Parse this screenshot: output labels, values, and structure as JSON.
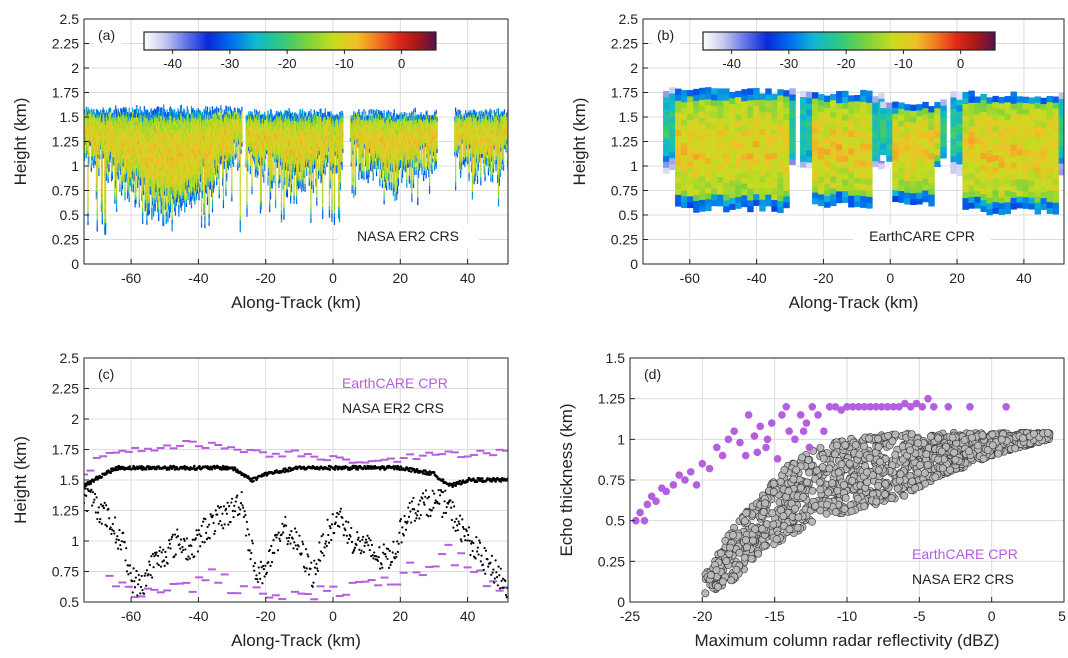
{
  "chart_data": [
    {
      "type": "heatmap",
      "panel_label": "(a)",
      "xlabel": "Along-Track (km)",
      "ylabel": "Height (km)",
      "xlim": [
        -74,
        52
      ],
      "ylim": [
        0,
        2.5
      ],
      "xticks": [
        -60,
        -40,
        -20,
        0,
        20,
        40
      ],
      "yticks": [
        0,
        0.25,
        0.5,
        0.75,
        1,
        1.25,
        1.5,
        1.75,
        2,
        2.25,
        2.5
      ],
      "grid": true,
      "annotation": "NASA ER2 CRS",
      "colorbar": {
        "ticks": [
          -40,
          -30,
          -20,
          -10,
          0
        ],
        "range": [
          -45,
          6
        ],
        "placement": "top-inside"
      },
      "cloud_segments": [
        {
          "x_start": -74,
          "x_end": -27,
          "top_km": 1.55,
          "base_km": 0.3
        },
        {
          "x_start": -26,
          "x_end": 3,
          "top_km": 1.52,
          "base_km": 0.38
        },
        {
          "x_start": 5,
          "x_end": 31,
          "top_km": 1.52,
          "base_km": 0.6
        },
        {
          "x_start": 36,
          "x_end": 52,
          "top_km": 1.52,
          "base_km": 0.58
        }
      ]
    },
    {
      "type": "heatmap",
      "panel_label": "(b)",
      "xlabel": "Along-Track (km)",
      "ylabel": "Height (km)",
      "xlim": [
        -74,
        52
      ],
      "ylim": [
        0,
        2.5
      ],
      "xticks": [
        -60,
        -40,
        -20,
        0,
        20,
        40
      ],
      "yticks": [
        0,
        0.25,
        0.5,
        0.75,
        1,
        1.25,
        1.5,
        1.75,
        2,
        2.25,
        2.5
      ],
      "grid": true,
      "annotation": "EarthCARE CPR",
      "colorbar": {
        "ticks": [
          -40,
          -30,
          -20,
          -10,
          0
        ],
        "range": [
          -45,
          6
        ],
        "placement": "top-inside"
      },
      "cloud_segments": [
        {
          "x_start": -68,
          "x_end": -29,
          "top_km": 1.75,
          "base_km": 0.52
        },
        {
          "x_start": -27,
          "x_end": -3,
          "top_km": 1.72,
          "base_km": 0.55
        },
        {
          "x_start": -3,
          "x_end": 16,
          "top_km": 1.62,
          "base_km": 0.58
        },
        {
          "x_start": 18,
          "x_end": 52,
          "top_km": 1.7,
          "base_km": 0.5
        }
      ]
    },
    {
      "type": "scatter",
      "panel_label": "(c)",
      "xlabel": "Along-Track (km)",
      "ylabel": "Height (km)",
      "xlim": [
        -74,
        52
      ],
      "ylim": [
        0.5,
        2.5
      ],
      "xticks": [
        -60,
        -40,
        -20,
        0,
        20,
        40
      ],
      "yticks": [
        0.5,
        0.75,
        1,
        1.25,
        1.5,
        1.75,
        2,
        2.25,
        2.5
      ],
      "grid": true,
      "legend": "top-right",
      "series": [
        {
          "name": "EarthCARE CPR",
          "color": "#b45ee0",
          "marker": "dash",
          "top_profile": [
            [
              -74,
              1.55
            ],
            [
              -68,
              1.72
            ],
            [
              -60,
              1.75
            ],
            [
              -50,
              1.78
            ],
            [
              -40,
              1.8
            ],
            [
              -30,
              1.76
            ],
            [
              -20,
              1.72
            ],
            [
              -10,
              1.72
            ],
            [
              0,
              1.68
            ],
            [
              10,
              1.66
            ],
            [
              20,
              1.68
            ],
            [
              30,
              1.7
            ],
            [
              40,
              1.72
            ],
            [
              52,
              1.74
            ]
          ],
          "base_profile": [
            [
              -68,
              0.8
            ],
            [
              -62,
              0.58
            ],
            [
              -55,
              0.62
            ],
            [
              -45,
              0.6
            ],
            [
              -35,
              0.7
            ],
            [
              -25,
              0.54
            ],
            [
              -15,
              0.55
            ],
            [
              -5,
              0.56
            ],
            [
              5,
              0.62
            ],
            [
              15,
              0.7
            ],
            [
              25,
              0.75
            ],
            [
              35,
              0.9
            ],
            [
              45,
              0.72
            ],
            [
              52,
              0.52
            ]
          ]
        },
        {
          "name": "NASA ER2 CRS",
          "color": "#000000",
          "marker": "dot",
          "top_profile": [
            [
              -74,
              1.45
            ],
            [
              -68,
              1.55
            ],
            [
              -64,
              1.6
            ],
            [
              -50,
              1.6
            ],
            [
              -40,
              1.6
            ],
            [
              -30,
              1.6
            ],
            [
              -27,
              1.55
            ],
            [
              -24,
              1.5
            ],
            [
              -20,
              1.55
            ],
            [
              -10,
              1.6
            ],
            [
              0,
              1.6
            ],
            [
              10,
              1.6
            ],
            [
              20,
              1.6
            ],
            [
              30,
              1.55
            ],
            [
              35,
              1.45
            ],
            [
              40,
              1.5
            ],
            [
              52,
              1.5
            ]
          ],
          "base_profile": [
            [
              -72,
              1.35
            ],
            [
              -66,
              1.15
            ],
            [
              -62,
              0.95
            ],
            [
              -60,
              0.7
            ],
            [
              -57,
              0.62
            ],
            [
              -54,
              0.8
            ],
            [
              -50,
              0.9
            ],
            [
              -46,
              1.0
            ],
            [
              -42,
              0.92
            ],
            [
              -38,
              1.1
            ],
            [
              -34,
              1.18
            ],
            [
              -30,
              1.25
            ],
            [
              -27,
              1.35
            ],
            [
              -25,
              1.0
            ],
            [
              -22,
              0.7
            ],
            [
              -18,
              0.9
            ],
            [
              -14,
              1.1
            ],
            [
              -10,
              0.95
            ],
            [
              -6,
              0.72
            ],
            [
              -2,
              1.05
            ],
            [
              2,
              1.2
            ],
            [
              6,
              1.0
            ],
            [
              10,
              0.95
            ],
            [
              14,
              0.85
            ],
            [
              18,
              0.9
            ],
            [
              22,
              1.22
            ],
            [
              26,
              1.3
            ],
            [
              30,
              1.32
            ],
            [
              34,
              1.3
            ],
            [
              38,
              1.1
            ],
            [
              42,
              0.95
            ],
            [
              46,
              0.8
            ],
            [
              50,
              0.7
            ],
            [
              52,
              0.58
            ]
          ]
        }
      ]
    },
    {
      "type": "scatter",
      "panel_label": "(d)",
      "xlabel": "Maximum column radar reflectivity (dBZ)",
      "ylabel": "Echo thickness (km)",
      "xlim": [
        -25,
        5
      ],
      "ylim": [
        0,
        1.5
      ],
      "xticks": [
        -25,
        -20,
        -15,
        -10,
        -5,
        0,
        5
      ],
      "yticks": [
        0,
        0.25,
        0.5,
        0.75,
        1,
        1.25,
        1.5
      ],
      "grid": true,
      "legend": "bottom-right",
      "series": [
        {
          "name": "EarthCARE CPR",
          "color": "#b45ee0",
          "points": [
            [
              -24.6,
              0.5
            ],
            [
              -24.3,
              0.55
            ],
            [
              -24.0,
              0.5
            ],
            [
              -23.8,
              0.6
            ],
            [
              -23.5,
              0.65
            ],
            [
              -23.2,
              0.62
            ],
            [
              -22.8,
              0.7
            ],
            [
              -22.5,
              0.68
            ],
            [
              -22.0,
              0.72
            ],
            [
              -21.6,
              0.78
            ],
            [
              -21.2,
              0.75
            ],
            [
              -20.8,
              0.8
            ],
            [
              -20.4,
              0.72
            ],
            [
              -20.0,
              0.85
            ],
            [
              -19.5,
              0.82
            ],
            [
              -19.0,
              0.95
            ],
            [
              -18.6,
              0.9
            ],
            [
              -18.2,
              1.0
            ],
            [
              -17.8,
              1.05
            ],
            [
              -17.4,
              0.98
            ],
            [
              -16.8,
              1.15
            ],
            [
              -16.4,
              1.02
            ],
            [
              -16.0,
              1.08
            ],
            [
              -15.6,
              0.95
            ],
            [
              -15.2,
              1.1
            ],
            [
              -14.8,
              0.88
            ],
            [
              -14.5,
              1.15
            ],
            [
              -14.2,
              1.2
            ],
            [
              -14.0,
              1.05
            ],
            [
              -13.6,
              1.0
            ],
            [
              -13.2,
              1.15
            ],
            [
              -12.8,
              1.1
            ],
            [
              -12.4,
              1.2
            ],
            [
              -12.0,
              1.15
            ],
            [
              -11.6,
              1.05
            ],
            [
              -11.2,
              1.2
            ],
            [
              -10.8,
              1.2
            ],
            [
              -10.4,
              1.18
            ],
            [
              -10.0,
              1.2
            ],
            [
              -9.6,
              1.2
            ],
            [
              -9.2,
              1.2
            ],
            [
              -8.8,
              1.2
            ],
            [
              -8.4,
              1.2
            ],
            [
              -8.0,
              1.2
            ],
            [
              -7.6,
              1.2
            ],
            [
              -7.2,
              1.2
            ],
            [
              -6.8,
              1.2
            ],
            [
              -6.4,
              1.2
            ],
            [
              -6.0,
              1.22
            ],
            [
              -5.6,
              1.2
            ],
            [
              -5.2,
              1.22
            ],
            [
              -4.8,
              1.2
            ],
            [
              -4.4,
              1.25
            ],
            [
              -4.0,
              1.2
            ],
            [
              -3.0,
              1.2
            ],
            [
              -1.5,
              1.2
            ],
            [
              1.0,
              1.2
            ],
            [
              -13.0,
              1.05
            ],
            [
              -12.6,
              0.95
            ],
            [
              -15.5,
              1.0
            ],
            [
              -16.2,
              0.92
            ],
            [
              -17.0,
              0.9
            ]
          ]
        },
        {
          "name": "NASA ER2 CRS",
          "color": "#b8b8b8",
          "cloud": {
            "x_range": [
              -19.8,
              4
            ],
            "lower_envelope": [
              [
                -19.5,
                0.05
              ],
              [
                -18,
                0.12
              ],
              [
                -16,
                0.3
              ],
              [
                -14,
                0.4
              ],
              [
                -12,
                0.5
              ],
              [
                -10,
                0.55
              ],
              [
                -8,
                0.6
              ],
              [
                -6,
                0.65
              ],
              [
                -4,
                0.75
              ],
              [
                0,
                0.9
              ],
              [
                4,
                1.0
              ]
            ],
            "upper_envelope": [
              [
                -19.5,
                0.2
              ],
              [
                -18,
                0.45
              ],
              [
                -16,
                0.65
              ],
              [
                -14,
                0.85
              ],
              [
                -12,
                0.95
              ],
              [
                -10,
                1.0
              ],
              [
                -8,
                1.03
              ],
              [
                -4,
                1.04
              ],
              [
                0,
                1.04
              ],
              [
                4,
                1.04
              ]
            ]
          }
        }
      ]
    }
  ]
}
